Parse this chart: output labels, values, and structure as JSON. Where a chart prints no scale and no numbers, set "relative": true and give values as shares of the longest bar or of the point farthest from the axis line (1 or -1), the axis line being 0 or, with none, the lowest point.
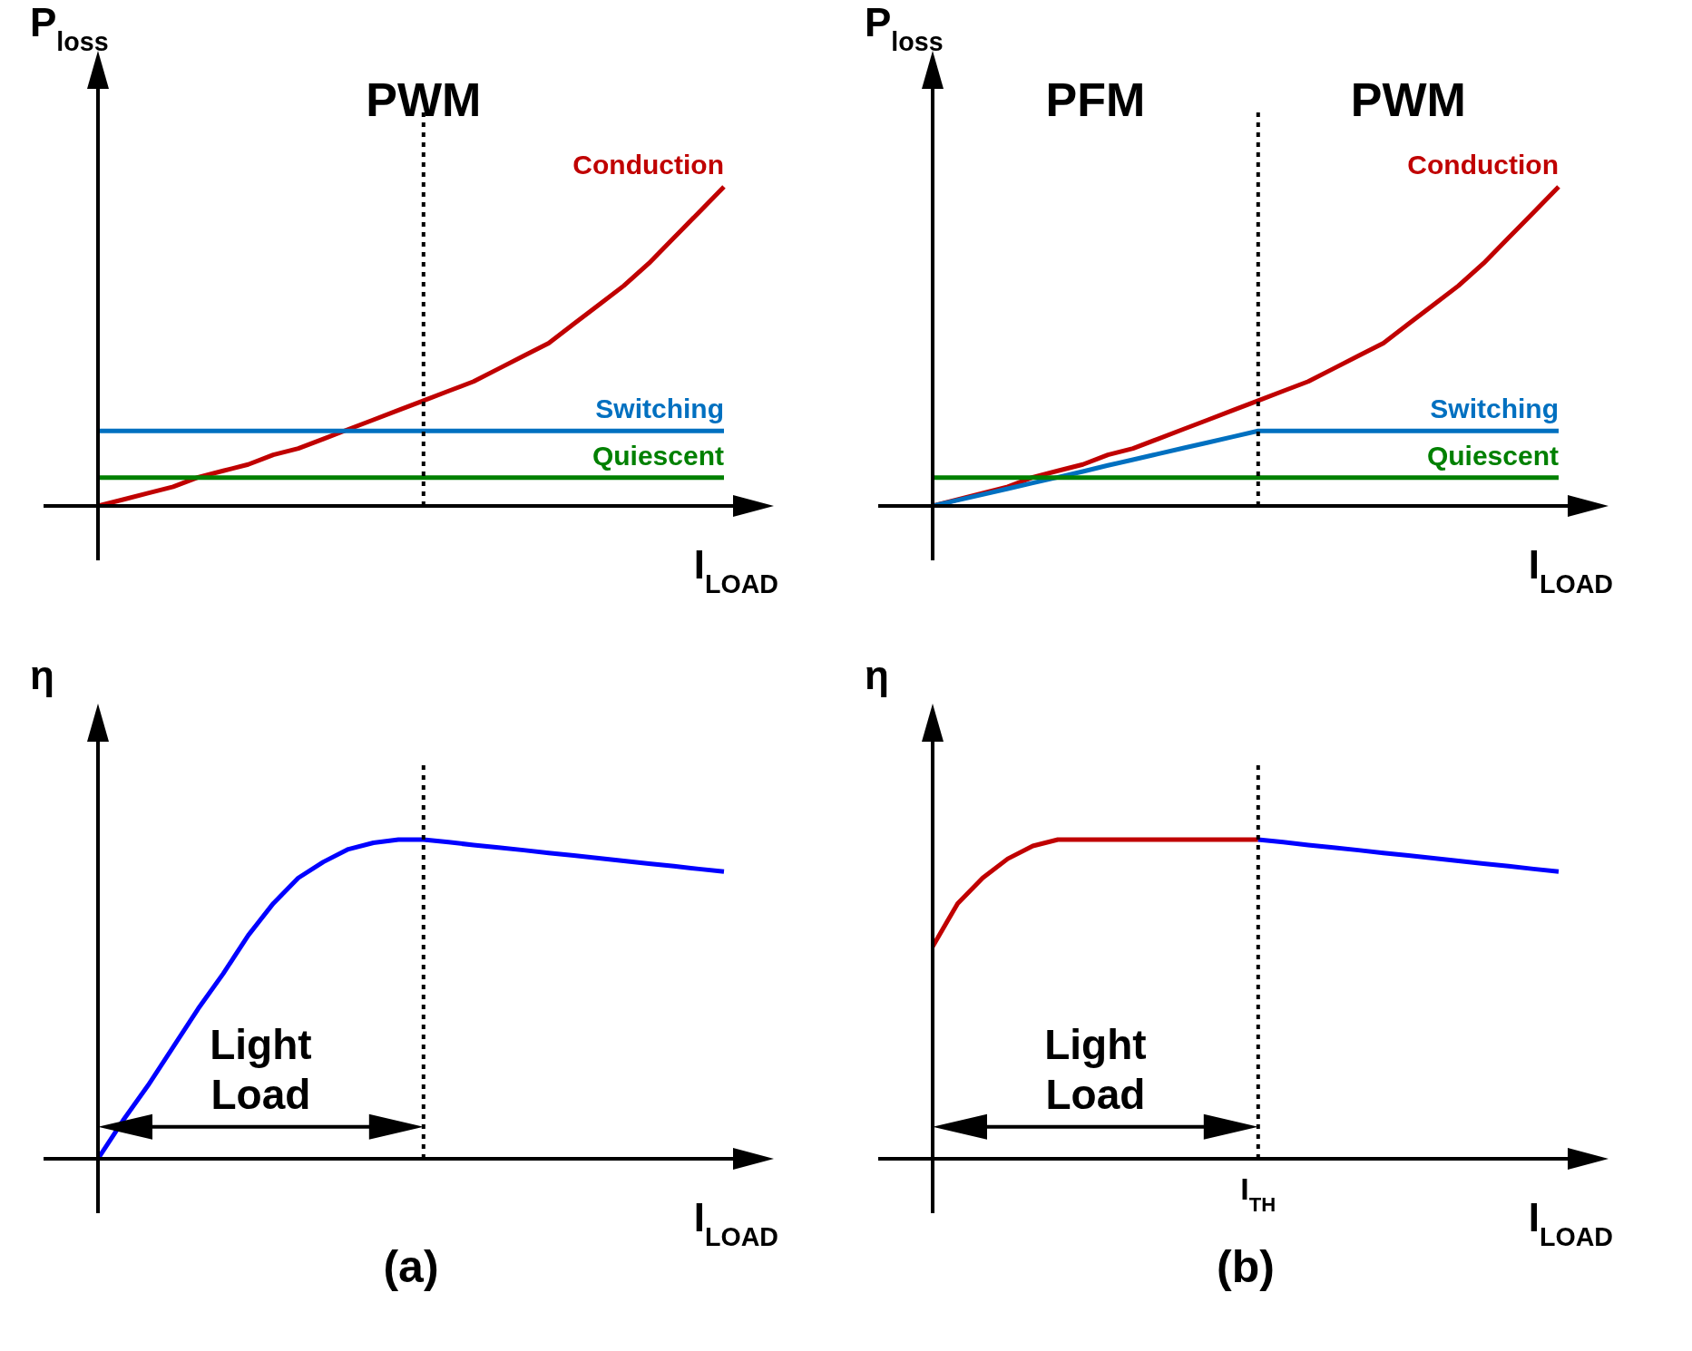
{
  "chart_data": [
    {
      "type": "line",
      "ylabel": "P$_{loss}$",
      "xlabel": "I$_{LOAD}$",
      "relative": true,
      "marker": "none",
      "annotations": [
        "PWM"
      ],
      "categories": [
        null,
        null,
        null,
        null,
        null,
        null,
        null,
        null,
        null,
        null,
        null,
        null,
        null,
        null,
        null,
        null,
        null,
        null,
        null,
        null,
        null,
        null,
        null,
        null,
        null,
        null
      ],
      "series": [
        {
          "name": "Conduction",
          "color": "#c00000",
          "values": [
            0,
            0.02,
            0.04,
            0.06,
            0.09,
            0.11,
            0.13,
            0.16,
            0.18,
            0.21,
            0.24,
            0.27,
            0.3,
            0.33,
            0.36,
            0.39,
            0.43,
            0.47,
            0.51,
            0.57,
            0.63,
            0.69,
            0.76,
            0.84,
            0.92,
            1
          ]
        },
        {
          "name": "Switching",
          "color": "#0070c0",
          "values": [
            0.235,
            0.235,
            0.235,
            0.235,
            0.235,
            0.235,
            0.235,
            0.235,
            0.235,
            0.235,
            0.235,
            0.235,
            0.235,
            0.235,
            0.235,
            0.235,
            0.235,
            0.235,
            0.235,
            0.235,
            0.235,
            0.235,
            0.235,
            0.235,
            0.235,
            0.235
          ]
        },
        {
          "name": "Quiescent",
          "color": "#008000",
          "values": [
            0.089,
            0.089,
            0.089,
            0.089,
            0.089,
            0.089,
            0.089,
            0.089,
            0.089,
            0.089,
            0.089,
            0.089,
            0.089,
            0.089,
            0.089,
            0.089,
            0.089,
            0.089,
            0.089,
            0.089,
            0.089,
            0.089,
            0.089,
            0.089,
            0.089,
            0.089
          ]
        }
      ]
    },
    {
      "type": "line",
      "ylabel": "P$_{loss}$",
      "xlabel": "I$_{LOAD}$",
      "relative": true,
      "marker": "none",
      "categories": [
        null,
        null,
        null,
        null,
        null,
        null,
        null,
        null,
        null,
        null,
        null,
        null,
        null,
        null,
        null,
        null,
        null,
        null,
        null,
        null,
        null,
        null,
        null,
        null,
        null,
        null
      ],
      "annotations": [
        "PFM",
        "PWM"
      ],
      "series": [
        {
          "name": "Conduction",
          "color": "#c00000",
          "values": [
            0,
            0.02,
            0.04,
            0.06,
            0.09,
            0.11,
            0.13,
            0.16,
            0.18,
            0.21,
            0.24,
            0.27,
            0.3,
            0.33,
            0.36,
            0.39,
            0.43,
            0.47,
            0.51,
            0.57,
            0.63,
            0.69,
            0.76,
            0.84,
            0.92,
            1
          ]
        },
        {
          "name": "Switching",
          "color": "#0070c0",
          "values": [
            0,
            0.018,
            0.036,
            0.054,
            0.072,
            0.09,
            0.108,
            0.127,
            0.145,
            0.163,
            0.181,
            0.199,
            0.217,
            0.235,
            0.235,
            0.235,
            0.235,
            0.235,
            0.235,
            0.235,
            0.235,
            0.235,
            0.235,
            0.235,
            0.235,
            0.235
          ]
        },
        {
          "name": "Quiescent",
          "color": "#008000",
          "values": [
            0.089,
            0.089,
            0.089,
            0.089,
            0.089,
            0.089,
            0.089,
            0.089,
            0.089,
            0.089,
            0.089,
            0.089,
            0.089,
            0.089,
            0.089,
            0.089,
            0.089,
            0.089,
            0.089,
            0.089,
            0.089,
            0.089,
            0.089,
            0.089,
            0.089,
            0.089
          ]
        }
      ]
    },
    {
      "type": "line",
      "title": "(a)",
      "ylabel": "η",
      "xlabel": "I$_{LOAD}$",
      "relative": true,
      "marker": "none",
      "categories": [
        null,
        null,
        null,
        null,
        null,
        null,
        null,
        null,
        null,
        null,
        null,
        null,
        null,
        null,
        null,
        null,
        null,
        null,
        null,
        null,
        null,
        null,
        null,
        null,
        null,
        null
      ],
      "annotations": [
        "Light Load"
      ],
      "series": [
        {
          "color": "#0000ff",
          "values": [
            0,
            0.12,
            0.23,
            0.35,
            0.47,
            0.58,
            0.7,
            0.8,
            0.88,
            0.93,
            0.97,
            0.99,
            1,
            1,
            0.992,
            0.983,
            0.975,
            0.967,
            0.958,
            0.95,
            0.942,
            0.933,
            0.925,
            0.917,
            0.908,
            0.9
          ]
        }
      ]
    },
    {
      "type": "line",
      "title": "(b)",
      "ylabel": "η",
      "xlabel": "I$_{LOAD}$",
      "relative": true,
      "marker": "none",
      "categories": [
        null,
        null,
        null,
        null,
        null,
        null,
        null,
        null,
        null,
        null,
        null,
        null,
        null,
        null,
        null,
        null,
        null,
        null,
        null,
        null,
        null,
        null,
        null,
        null,
        null,
        null
      ],
      "annotations": [
        "Light Load",
        "I$_{TH}$"
      ],
      "series": [
        {
          "color": "#c00000",
          "values": [
            0.665,
            0.8,
            0.88,
            0.94,
            0.98,
            1,
            1,
            1,
            1,
            1,
            1,
            1,
            1,
            1,
            null,
            null,
            null,
            null,
            null,
            null,
            null,
            null,
            null,
            null,
            null,
            null
          ]
        },
        {
          "color": "#0000ff",
          "values": [
            null,
            null,
            null,
            null,
            null,
            null,
            null,
            null,
            null,
            null,
            null,
            null,
            null,
            1,
            0.992,
            0.983,
            0.975,
            0.967,
            0.958,
            0.95,
            0.942,
            0.933,
            0.925,
            0.917,
            0.908,
            0.9
          ]
        }
      ]
    }
  ]
}
